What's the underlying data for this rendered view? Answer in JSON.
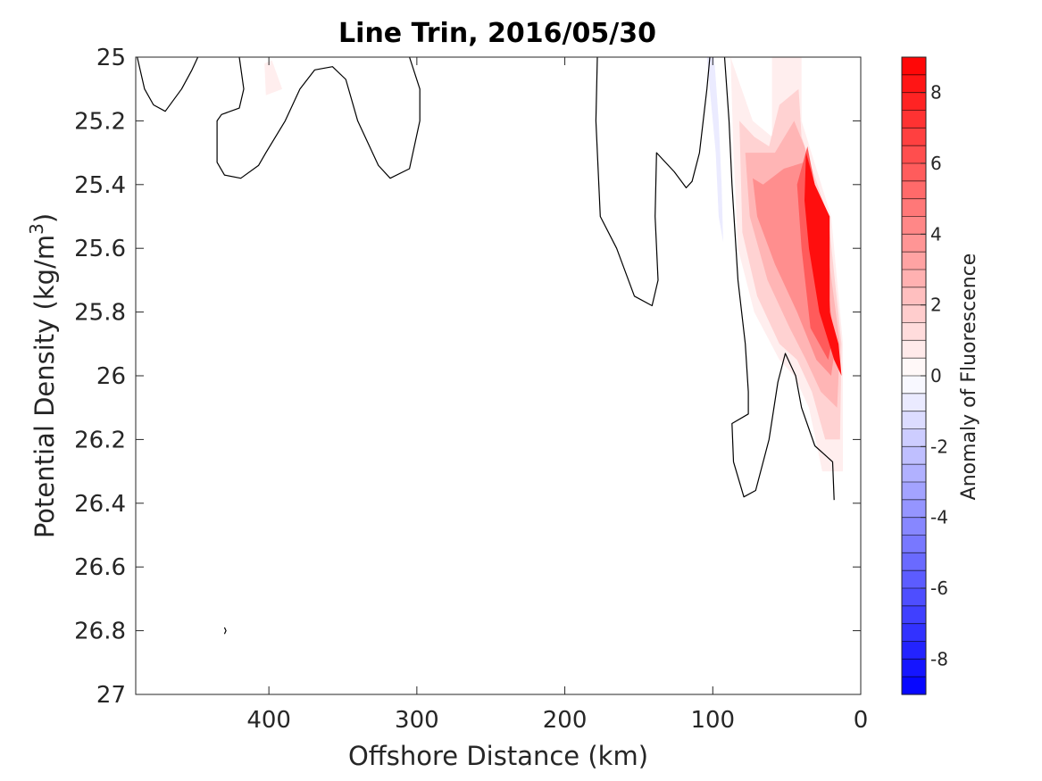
{
  "chart_data": {
    "type": "contour",
    "title": "Line Trin, 2016/05/30",
    "xlabel": "Offshore Distance (km)",
    "ylabel": "Potential Density (kg/m",
    "ylabel_sup": "3",
    "ylabel_end": ")",
    "xlim": [
      490,
      0
    ],
    "ylim": [
      25,
      27
    ],
    "x_reversed": true,
    "y_reversed": true,
    "x_ticks": [
      400,
      300,
      200,
      100,
      0
    ],
    "x_tick_labels": [
      "400",
      "300",
      "200",
      "100",
      "0"
    ],
    "y_ticks": [
      25,
      25.2,
      25.4,
      25.6,
      25.8,
      26,
      26.2,
      26.4,
      26.6,
      26.8,
      27
    ],
    "y_tick_labels": [
      "25",
      "25.2",
      "25.4",
      "25.6",
      "25.8",
      "26",
      "26.2",
      "26.4",
      "26.6",
      "26.8",
      "27"
    ],
    "colorbar": {
      "label": "Anomaly of Fluorescence",
      "range": [
        -9,
        9
      ],
      "levels": 36,
      "ticks": [
        8,
        6,
        4,
        2,
        0,
        -2,
        -4,
        -6,
        -8
      ],
      "tick_labels": [
        "8",
        "6",
        "4",
        "2",
        "0",
        "-2",
        "-4",
        "-6",
        "-8"
      ],
      "low_color": "#0000ff",
      "mid_color": "#ffffff",
      "high_color": "#ff0000"
    },
    "zero_contour_lines": [
      [
        [
          489,
          25.0
        ],
        [
          484,
          25.1
        ],
        [
          478,
          25.15
        ],
        [
          470,
          25.17
        ],
        [
          459,
          25.1
        ],
        [
          452,
          25.04
        ],
        [
          448,
          25.0
        ]
      ],
      [
        [
          420,
          25.0
        ],
        [
          417,
          25.1
        ],
        [
          420,
          25.16
        ],
        [
          432,
          25.18
        ],
        [
          435,
          25.2
        ],
        [
          435,
          25.33
        ],
        [
          430,
          25.37
        ],
        [
          419,
          25.38
        ],
        [
          407,
          25.34
        ],
        [
          402,
          25.3
        ],
        [
          389,
          25.2
        ],
        [
          379,
          25.1
        ],
        [
          369,
          25.04
        ],
        [
          357,
          25.03
        ],
        [
          348,
          25.07
        ],
        [
          340,
          25.2
        ],
        [
          326,
          25.34
        ],
        [
          318,
          25.38
        ],
        [
          305,
          25.35
        ],
        [
          298,
          25.2
        ],
        [
          298,
          25.1
        ],
        [
          305,
          25.0
        ]
      ],
      [
        [
          178,
          25.0
        ],
        [
          179,
          25.2
        ],
        [
          176,
          25.5
        ],
        [
          165,
          25.6
        ],
        [
          153,
          25.75
        ],
        [
          141,
          25.78
        ],
        [
          137,
          25.7
        ],
        [
          139,
          25.5
        ],
        [
          138,
          25.3
        ],
        [
          126,
          25.36
        ],
        [
          118,
          25.41
        ],
        [
          114,
          25.39
        ],
        [
          109,
          25.3
        ],
        [
          104,
          25.1
        ],
        [
          102,
          25.0
        ]
      ],
      [
        [
          92,
          25.0
        ],
        [
          89,
          25.2
        ],
        [
          87,
          25.4
        ],
        [
          83,
          25.7
        ],
        [
          78,
          25.9
        ],
        [
          76,
          26.05
        ],
        [
          76,
          26.12
        ],
        [
          87,
          26.15
        ],
        [
          86,
          26.27
        ],
        [
          79,
          26.38
        ],
        [
          71,
          26.36
        ],
        [
          62,
          26.2
        ],
        [
          56,
          26.02
        ],
        [
          51,
          25.93
        ],
        [
          44,
          26.0
        ],
        [
          40,
          26.1
        ],
        [
          31,
          26.22
        ],
        [
          19,
          26.27
        ],
        [
          18,
          26.39
        ]
      ],
      [
        [
          430,
          26.79
        ],
        [
          429,
          26.8
        ],
        [
          430,
          26.81
        ]
      ]
    ],
    "positive_anomaly": [
      {
        "value": 0.6,
        "points": [
          [
            88,
            25.0
          ],
          [
            73,
            25.2
          ],
          [
            60,
            25.25
          ],
          [
            60,
            25.0
          ],
          [
            40,
            25.0
          ],
          [
            40,
            25.2
          ],
          [
            20,
            25.5
          ],
          [
            12,
            25.9
          ],
          [
            12,
            26.3
          ],
          [
            26,
            26.3
          ],
          [
            35,
            26.1
          ],
          [
            45,
            26.0
          ],
          [
            55,
            25.95
          ],
          [
            72,
            25.8
          ],
          [
            83,
            25.6
          ],
          [
            86,
            25.3
          ]
        ]
      },
      {
        "value": 1.6,
        "points": [
          [
            82,
            25.2
          ],
          [
            72,
            25.25
          ],
          [
            62,
            25.28
          ],
          [
            55,
            25.15
          ],
          [
            42,
            25.1
          ],
          [
            40,
            25.25
          ],
          [
            22,
            25.5
          ],
          [
            13,
            25.9
          ],
          [
            14,
            26.2
          ],
          [
            24,
            26.2
          ],
          [
            33,
            26.05
          ],
          [
            43,
            25.95
          ],
          [
            55,
            25.9
          ],
          [
            70,
            25.75
          ],
          [
            80,
            25.55
          ]
        ]
      },
      {
        "value": 2.6,
        "points": [
          [
            78,
            25.3
          ],
          [
            70,
            25.3
          ],
          [
            58,
            25.3
          ],
          [
            45,
            25.2
          ],
          [
            38,
            25.28
          ],
          [
            24,
            25.55
          ],
          [
            14,
            25.9
          ],
          [
            16,
            26.1
          ],
          [
            27,
            26.05
          ],
          [
            37,
            25.95
          ],
          [
            48,
            25.85
          ],
          [
            63,
            25.7
          ],
          [
            75,
            25.5
          ]
        ]
      },
      {
        "value": 4.0,
        "points": [
          [
            73,
            25.38
          ],
          [
            66,
            25.4
          ],
          [
            52,
            25.35
          ],
          [
            38,
            25.33
          ],
          [
            27,
            25.6
          ],
          [
            17,
            25.9
          ],
          [
            20,
            26.0
          ],
          [
            30,
            25.95
          ],
          [
            43,
            25.8
          ],
          [
            58,
            25.65
          ],
          [
            70,
            25.5
          ]
        ]
      },
      {
        "value": 5.8,
        "points": [
          [
            36,
            25.28
          ],
          [
            29,
            25.45
          ],
          [
            24,
            25.6
          ],
          [
            19,
            25.88
          ],
          [
            22,
            25.95
          ],
          [
            34,
            25.85
          ],
          [
            40,
            25.6
          ],
          [
            43,
            25.4
          ]
        ]
      },
      {
        "value": 8.5,
        "points": [
          [
            37,
            25.3
          ],
          [
            31,
            25.4
          ],
          [
            21,
            25.5
          ],
          [
            21,
            25.8
          ],
          [
            15,
            25.9
          ],
          [
            13,
            26.0
          ],
          [
            18,
            25.95
          ],
          [
            28,
            25.8
          ],
          [
            35,
            25.6
          ],
          [
            38,
            25.45
          ]
        ]
      },
      {
        "value": 0.6,
        "points": [
          [
            403,
            25.02
          ],
          [
            398,
            25.01
          ],
          [
            391,
            25.1
          ],
          [
            402,
            25.12
          ]
        ]
      }
    ],
    "negative_anomaly": [
      {
        "value": -0.7,
        "points": [
          [
            104,
            25.0
          ],
          [
            99,
            25.0
          ],
          [
            96,
            25.2
          ],
          [
            94,
            25.4
          ],
          [
            93,
            25.58
          ],
          [
            96,
            25.5
          ],
          [
            98,
            25.3
          ],
          [
            101,
            25.15
          ]
        ]
      }
    ]
  }
}
